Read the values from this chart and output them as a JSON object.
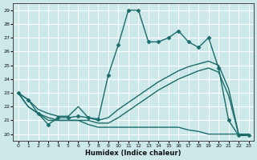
{
  "title": "",
  "xlabel": "Humidex (Indice chaleur)",
  "ylabel": "",
  "bg_color": "#cce8e8",
  "grid_color": "#ffffff",
  "line_color": "#1a6b6b",
  "xlim": [
    -0.5,
    23.5
  ],
  "ylim": [
    19.5,
    29.5
  ],
  "yticks": [
    20,
    21,
    22,
    23,
    24,
    25,
    26,
    27,
    28,
    29
  ],
  "xticks": [
    0,
    1,
    2,
    3,
    4,
    5,
    6,
    7,
    8,
    9,
    10,
    11,
    12,
    13,
    14,
    15,
    16,
    17,
    18,
    19,
    20,
    21,
    22,
    23
  ],
  "series": [
    {
      "x": [
        0,
        1,
        2,
        3,
        4,
        5,
        6,
        7,
        8,
        9,
        10,
        11,
        12,
        13,
        14,
        15,
        16,
        17,
        18,
        19,
        20,
        21,
        22,
        23
      ],
      "y": [
        23.0,
        22.5,
        21.5,
        20.7,
        21.2,
        21.2,
        21.3,
        21.2,
        21.1,
        24.3,
        26.5,
        29.0,
        29.0,
        26.7,
        26.7,
        27.0,
        27.5,
        26.7,
        26.3,
        27.0,
        24.8,
        21.0,
        19.9,
        19.9
      ],
      "marker": "D",
      "markersize": 2.5,
      "linewidth": 1.0
    },
    {
      "x": [
        0,
        1,
        2,
        3,
        4,
        5,
        6,
        7,
        8,
        9,
        10,
        11,
        12,
        13,
        14,
        15,
        16,
        17,
        18,
        19,
        20,
        21,
        22,
        23
      ],
      "y": [
        23.0,
        22.5,
        21.8,
        21.5,
        21.3,
        21.3,
        22.0,
        21.2,
        21.0,
        21.2,
        21.8,
        22.3,
        22.8,
        23.3,
        23.8,
        24.2,
        24.6,
        24.9,
        25.1,
        25.3,
        25.0,
        23.3,
        20.0,
        19.9
      ],
      "marker": null,
      "markersize": 0,
      "linewidth": 1.0
    },
    {
      "x": [
        0,
        1,
        2,
        3,
        4,
        5,
        6,
        7,
        8,
        9,
        10,
        11,
        12,
        13,
        14,
        15,
        16,
        17,
        18,
        19,
        20,
        21,
        22,
        23
      ],
      "y": [
        23.0,
        22.0,
        21.5,
        21.2,
        21.0,
        21.0,
        21.0,
        21.0,
        20.8,
        20.8,
        21.2,
        21.7,
        22.2,
        22.7,
        23.2,
        23.6,
        24.0,
        24.3,
        24.6,
        24.8,
        24.5,
        22.8,
        20.0,
        19.9
      ],
      "marker": null,
      "markersize": 0,
      "linewidth": 1.0
    },
    {
      "x": [
        0,
        1,
        2,
        3,
        4,
        5,
        6,
        7,
        8,
        9,
        10,
        11,
        12,
        13,
        14,
        15,
        16,
        17,
        18,
        19,
        20,
        21,
        22,
        23
      ],
      "y": [
        23.0,
        22.0,
        21.5,
        21.0,
        21.0,
        21.0,
        21.0,
        20.7,
        20.5,
        20.5,
        20.5,
        20.5,
        20.5,
        20.5,
        20.5,
        20.5,
        20.5,
        20.3,
        20.2,
        20.0,
        20.0,
        20.0,
        20.0,
        20.0
      ],
      "marker": null,
      "markersize": 0,
      "linewidth": 1.0
    }
  ]
}
